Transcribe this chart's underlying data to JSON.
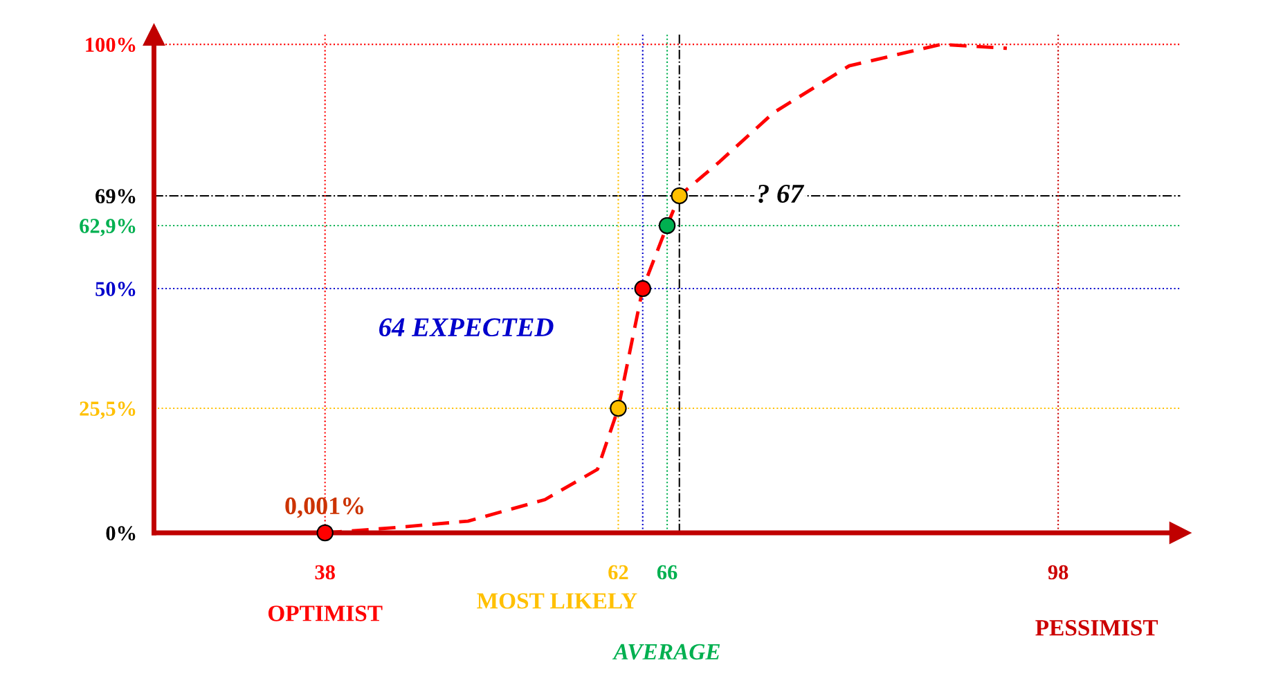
{
  "chart_data": {
    "type": "line",
    "x": [
      38,
      43.4,
      49.7,
      56,
      60.3,
      62,
      63.1,
      64,
      66,
      67,
      70.3,
      74.7,
      80.9,
      88.4,
      93.8
    ],
    "series": [
      {
        "color": "#ff0000",
        "line_style": "dashed",
        "values": [
          0,
          1,
          2.4,
          6.8,
          13,
          25.5,
          39,
          50,
          62.9,
          69,
          76,
          86,
          95.6,
          100,
          99.2
        ]
      },
      {
        "type": "scatter",
        "x": [
          38,
          62,
          64,
          66,
          67
        ],
        "colors": [
          "#ff0000",
          "#ffc000",
          "#ff0000",
          "#00b050",
          "#ffc000"
        ],
        "values": [
          0,
          25.5,
          50,
          62.9,
          69
        ]
      }
    ],
    "xlim": [
      24,
      108
    ],
    "ylim": [
      0,
      102
    ],
    "xticks": [
      {
        "value": 38,
        "label": "38"
      },
      {
        "value": 62,
        "label": "62"
      },
      {
        "value": 64,
        "label": null
      },
      {
        "value": 66,
        "label": "66"
      },
      {
        "value": 67,
        "label": null
      },
      {
        "value": 98,
        "label": "98"
      }
    ],
    "yticks": [
      {
        "value": 0,
        "label": "0%"
      },
      {
        "value": 25.5,
        "label": "25,5%"
      },
      {
        "value": 50,
        "label": "50%"
      },
      {
        "value": 62.9,
        "label": "62,9%"
      },
      {
        "value": 69,
        "label": "69%"
      },
      {
        "value": 100,
        "label": "100%"
      }
    ],
    "ref_lines": [
      {
        "axis": "y",
        "value": 100,
        "color": "#ff0000",
        "line_style": "dotted"
      },
      {
        "axis": "y",
        "value": 69,
        "color": "#000000",
        "line_style": "dashdot"
      },
      {
        "axis": "y",
        "value": 62.9,
        "color": "#00b050",
        "line_style": "dotted"
      },
      {
        "axis": "y",
        "value": 50,
        "label": "64 EXPECTED",
        "color": "#0000cc",
        "line_style": "dotted"
      },
      {
        "axis": "y",
        "value": 25.5,
        "color": "#ffc000",
        "line_style": "dotted"
      },
      {
        "axis": "x",
        "value": 38,
        "label": "OPTIMIST",
        "color": "#ff0000",
        "line_style": "dotted"
      },
      {
        "axis": "x",
        "value": 62,
        "label": "MOST LIKELY",
        "color": "#ffc000",
        "line_style": "dotted"
      },
      {
        "axis": "x",
        "value": 64,
        "color": "#0000cc",
        "line_style": "dotted"
      },
      {
        "axis": "x",
        "value": 66,
        "label": "AVERAGE",
        "color": "#00b050",
        "line_style": "dotted"
      },
      {
        "axis": "x",
        "value": 67,
        "label": "? 67",
        "color": "#000000",
        "line_style": "dashdot"
      },
      {
        "axis": "x",
        "value": 98,
        "label": "PESSIMIST",
        "color": "#cc0000",
        "line_style": "dotted"
      }
    ],
    "annotations": [
      {
        "text": "0,001%",
        "x": 38,
        "y": 0
      }
    ],
    "grid": false,
    "legend": false
  }
}
